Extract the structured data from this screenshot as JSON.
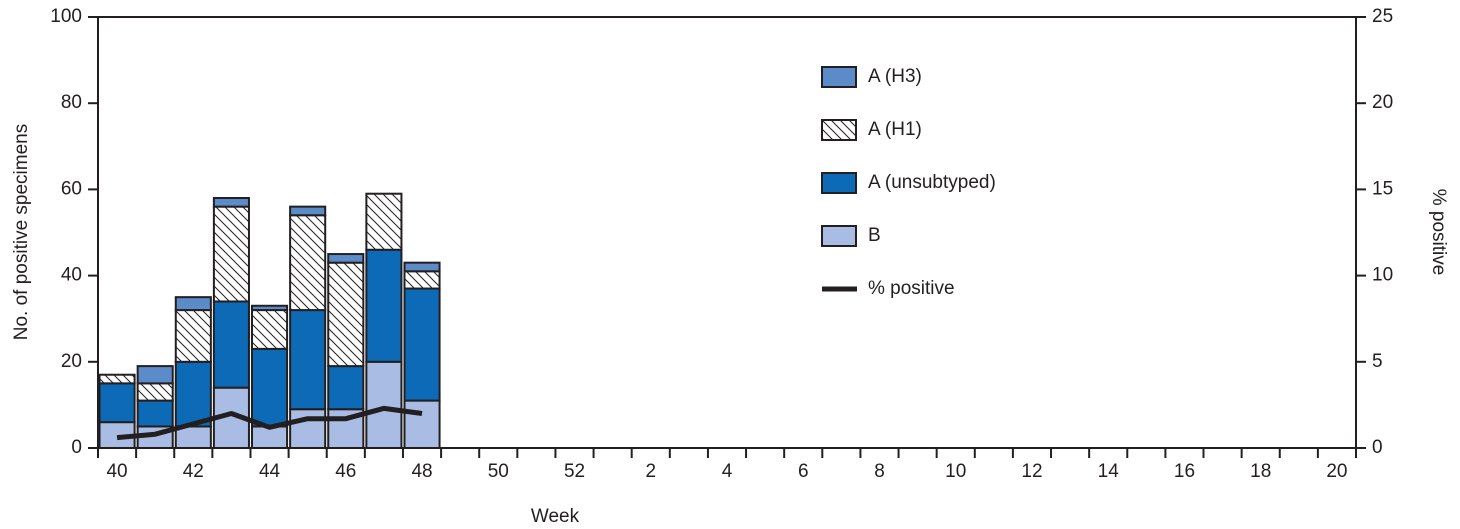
{
  "chart_data": {
    "type": "bar",
    "stacked": true,
    "xlabel": "Week",
    "ylabel": "No. of positive specimens",
    "y2label": "% positive",
    "categories": [
      "40",
      null,
      "42",
      null,
      "44",
      null,
      "46",
      null,
      "48",
      null,
      "50",
      null,
      "52",
      null,
      "2",
      null,
      "4",
      null,
      "6",
      null,
      "8",
      null,
      "10",
      null,
      "12",
      null,
      "14",
      null,
      "16",
      null,
      "18",
      null,
      "20"
    ],
    "ylim": [
      0,
      100
    ],
    "yticks": [
      0,
      20,
      40,
      60,
      80,
      100
    ],
    "y2lim": [
      0,
      25
    ],
    "y2ticks": [
      0,
      5,
      10,
      15,
      20,
      25
    ],
    "series": [
      {
        "name": "B",
        "color": "#a9bde4",
        "values": [
          6,
          5,
          5,
          14,
          5,
          9,
          9,
          20,
          11,
          null,
          null,
          null,
          null,
          null,
          null,
          null,
          null,
          null,
          null,
          null,
          null,
          null,
          null,
          null,
          null,
          null,
          null,
          null,
          null,
          null,
          null,
          null,
          null
        ]
      },
      {
        "name": "A (unsubtyped)",
        "color": "#0d6ab7",
        "values": [
          9,
          6,
          15,
          20,
          18,
          23,
          10,
          26,
          26,
          null,
          null,
          null,
          null,
          null,
          null,
          null,
          null,
          null,
          null,
          null,
          null,
          null,
          null,
          null,
          null,
          null,
          null,
          null,
          null,
          null,
          null,
          null,
          null
        ]
      },
      {
        "name": "A (H1)",
        "color": "#ffffff",
        "hatch": true,
        "values": [
          2,
          4,
          12,
          22,
          9,
          22,
          24,
          13,
          4,
          null,
          null,
          null,
          null,
          null,
          null,
          null,
          null,
          null,
          null,
          null,
          null,
          null,
          null,
          null,
          null,
          null,
          null,
          null,
          null,
          null,
          null,
          null,
          null
        ]
      },
      {
        "name": "A (H3)",
        "color": "#5b8cc9",
        "values": [
          0,
          4,
          3,
          2,
          1,
          2,
          2,
          0,
          2,
          null,
          null,
          null,
          null,
          null,
          null,
          null,
          null,
          null,
          null,
          null,
          null,
          null,
          null,
          null,
          null,
          null,
          null,
          null,
          null,
          null,
          null,
          null,
          null
        ]
      },
      {
        "name": "% positive",
        "color": "#231f20",
        "type": "line",
        "axis": "y2",
        "values": [
          0.6,
          0.8,
          1.4,
          2.0,
          1.2,
          1.7,
          1.7,
          2.3,
          2.0,
          null,
          null,
          null,
          null,
          null,
          null,
          null,
          null,
          null,
          null,
          null,
          null,
          null,
          null,
          null,
          null,
          null,
          null,
          null,
          null,
          null,
          null,
          null,
          null
        ]
      }
    ]
  }
}
